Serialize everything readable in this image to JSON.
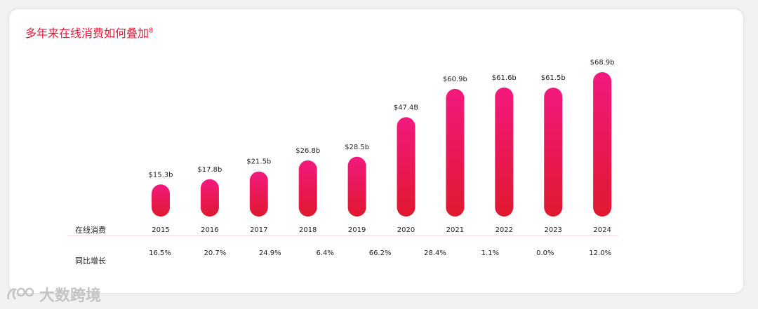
{
  "title": {
    "text": "多年来在线消费如何叠加",
    "footnote": "8"
  },
  "colors": {
    "accent": "#e8163a",
    "bar_top": "#f2197e",
    "bar_bottom": "#e0192f",
    "divider": "#f6dbe2"
  },
  "chart_data": {
    "type": "bar",
    "title": "多年来在线消费如何叠加",
    "categories": [
      "2015",
      "2016",
      "2017",
      "2018",
      "2019",
      "2020",
      "2021",
      "2022",
      "2023",
      "2024"
    ],
    "values": [
      15.3,
      17.8,
      21.5,
      26.8,
      28.5,
      47.4,
      60.9,
      61.6,
      61.5,
      68.9
    ],
    "value_labels": [
      "$15.3b",
      "$17.8b",
      "$21.5b",
      "$26.8b",
      "$28.5b",
      "$47.4B",
      "$60.9b",
      "$61.6b",
      "$61.5b",
      "$68.9b"
    ],
    "ylabel": "在线消费",
    "ylim": [
      0,
      70
    ],
    "grid": false,
    "legend": "none"
  },
  "table": {
    "row1_label": "在线消费",
    "row2_label": "同比增长",
    "growth": [
      "16.5%",
      "20.7%",
      "24.9%",
      "6.4%",
      "66.2%",
      "28.4%",
      "1.1%",
      "0.0%",
      "12.0%"
    ]
  },
  "watermark": {
    "text": "大数跨境",
    "icon": "logo-icon"
  }
}
